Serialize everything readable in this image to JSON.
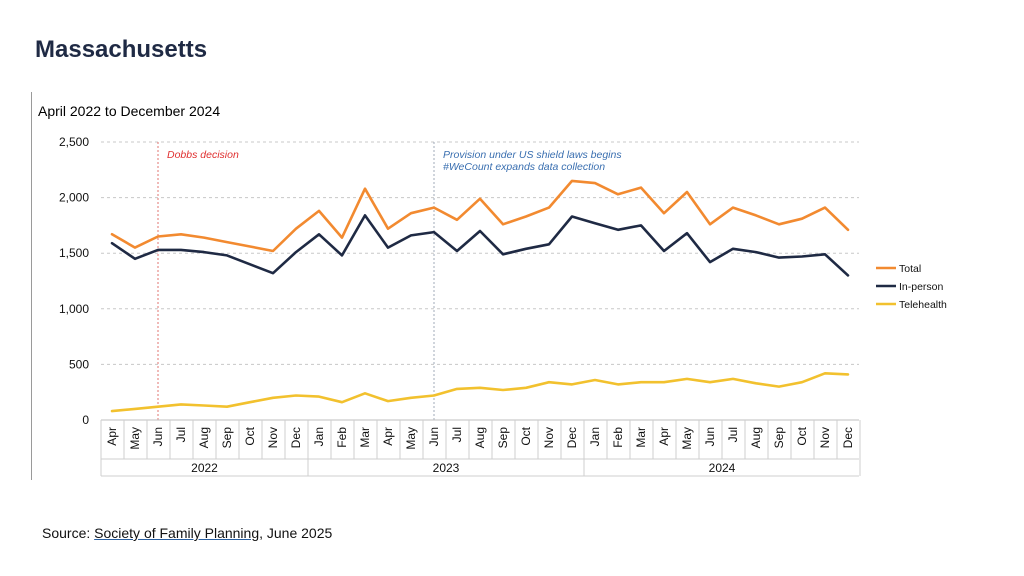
{
  "page": {
    "title": "Massachusetts",
    "source_prefix": "Source: ",
    "source_link": "Society of Family Planning",
    "source_suffix": ", June 2025"
  },
  "chart_data": {
    "type": "line",
    "title": "April 2022 to December 2024",
    "xlabel": "",
    "ylabel": "",
    "ylim": [
      0,
      2500
    ],
    "yticks": [
      0,
      500,
      1000,
      1500,
      2000,
      2500
    ],
    "ytick_labels": [
      "0",
      "500",
      "1,000",
      "1,500",
      "2,000",
      "2,500"
    ],
    "grid": true,
    "legend_position": "right",
    "categories": [
      "Apr",
      "May",
      "Jun",
      "Jul",
      "Aug",
      "Sep",
      "Oct",
      "Nov",
      "Dec",
      "Jan",
      "Feb",
      "Mar",
      "Apr",
      "May",
      "Jun",
      "Jul",
      "Aug",
      "Sep",
      "Oct",
      "Nov",
      "Dec",
      "Jan",
      "Feb",
      "Mar",
      "Apr",
      "May",
      "Jun",
      "Jul",
      "Aug",
      "Sep",
      "Oct",
      "Nov",
      "Dec"
    ],
    "year_groups": [
      {
        "label": "2022",
        "start": 0,
        "end": 8
      },
      {
        "label": "2023",
        "start": 9,
        "end": 20
      },
      {
        "label": "2024",
        "start": 21,
        "end": 32
      }
    ],
    "series": [
      {
        "name": "Total",
        "color": "#f28a30",
        "values": [
          1670,
          1550,
          1650,
          1670,
          1640,
          1600,
          1560,
          1520,
          1720,
          1880,
          1640,
          2080,
          1720,
          1860,
          1910,
          1800,
          1990,
          1760,
          1830,
          1910,
          2150,
          2130,
          2030,
          2090,
          1860,
          2050,
          1760,
          1910,
          1840,
          1760,
          1810,
          1910,
          1710
        ]
      },
      {
        "name": "In-person",
        "color": "#1f2a44",
        "values": [
          1590,
          1450,
          1530,
          1530,
          1510,
          1480,
          1400,
          1320,
          1510,
          1670,
          1480,
          1840,
          1550,
          1660,
          1690,
          1520,
          1700,
          1490,
          1540,
          1580,
          1830,
          1770,
          1710,
          1750,
          1520,
          1680,
          1420,
          1540,
          1510,
          1460,
          1470,
          1490,
          1300
        ]
      },
      {
        "name": "Telehealth",
        "color": "#f2c12e",
        "values": [
          80,
          100,
          120,
          140,
          130,
          120,
          160,
          200,
          220,
          210,
          160,
          240,
          170,
          200,
          220,
          280,
          290,
          270,
          290,
          340,
          320,
          360,
          320,
          340,
          340,
          370,
          340,
          370,
          330,
          300,
          340,
          420,
          410
        ]
      }
    ],
    "annotations": [
      {
        "index": 2,
        "lines": [
          "Dobbs decision"
        ],
        "color": "#e03030"
      },
      {
        "index": 14,
        "lines": [
          "Provision under US shield laws begins",
          "#WeCount expands data collection"
        ],
        "color": "#3a6fb0"
      }
    ]
  }
}
